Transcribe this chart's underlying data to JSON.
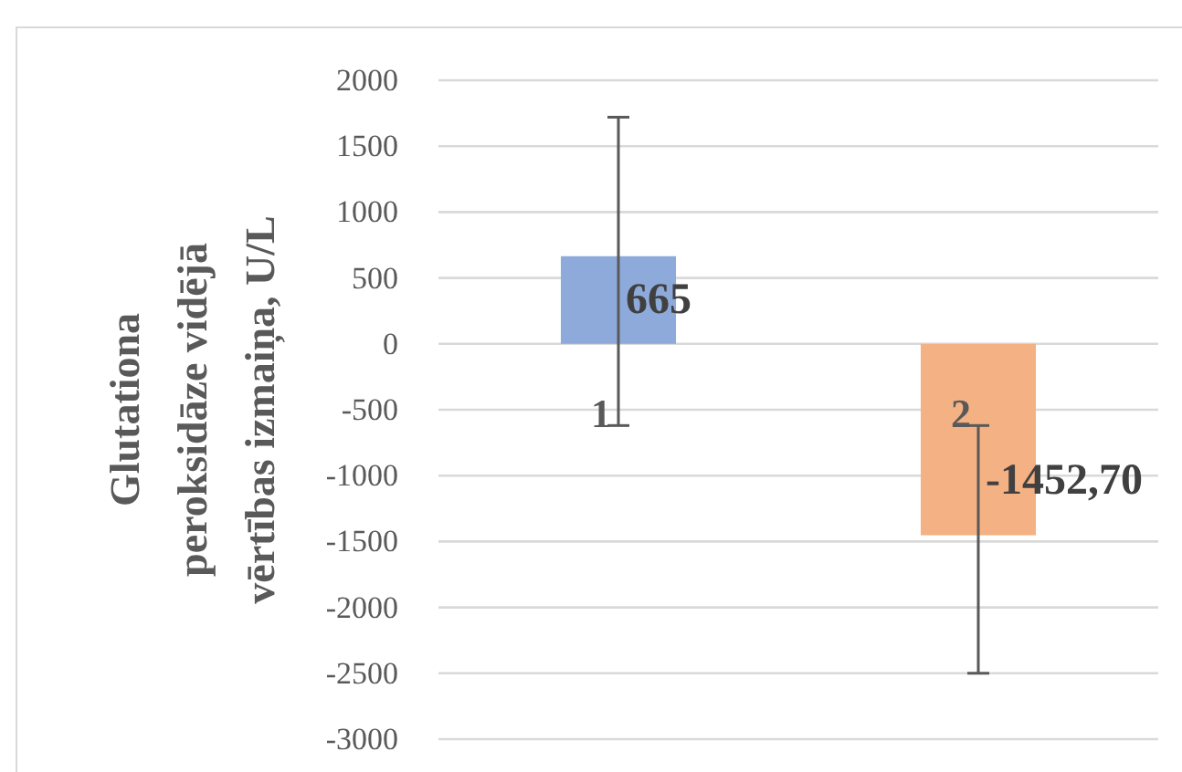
{
  "chart_data": {
    "type": "bar",
    "ylabel": "Glutationa\nperoksidāze vidējā\nvērtības izmaiņa, U/L",
    "categories": [
      "1",
      "2"
    ],
    "values": [
      665,
      -1452.7
    ],
    "colors": [
      "#8eaadb",
      "#f4b183"
    ],
    "errors": [
      [
        -620,
        1720
      ],
      [
        -2500,
        -620
      ]
    ],
    "value_labels": [
      "665",
      "-1452,70"
    ],
    "ylim": [
      -3000,
      2000
    ],
    "yticks": [
      -3000,
      -2500,
      -2000,
      -1500,
      -1000,
      -500,
      0,
      500,
      1000,
      1500,
      2000
    ],
    "grid": "y"
  }
}
